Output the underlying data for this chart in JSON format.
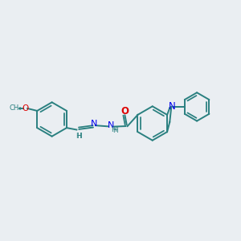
{
  "background_color": "#eaeef2",
  "bond_color": "#2a8080",
  "n_color": "#0000ee",
  "o_color": "#dd0000",
  "figsize": [
    3.0,
    3.0
  ],
  "dpi": 100,
  "xlim": [
    0,
    10
  ],
  "ylim": [
    0,
    10
  ]
}
